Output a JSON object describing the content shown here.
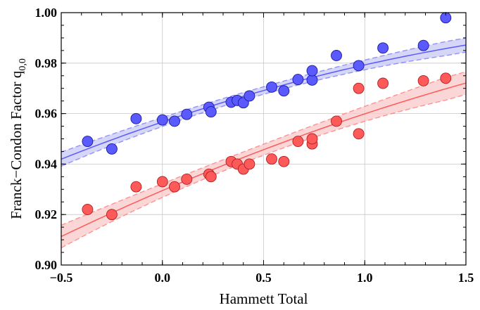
{
  "chart_data": {
    "type": "scatter",
    "title": "",
    "xlabel": "Hammett Total",
    "ylabel": "Franck−Condon Factor q",
    "ylabel_subscript": "0,0",
    "xlim": [
      -0.5,
      1.5
    ],
    "ylim": [
      0.9,
      1.0
    ],
    "x_ticks": [
      -0.5,
      0.0,
      0.5,
      1.0,
      1.5
    ],
    "x_tick_labels": [
      "−0.5",
      "0.0",
      "0.5",
      "1.0",
      "1.5"
    ],
    "y_ticks": [
      0.9,
      0.92,
      0.94,
      0.96,
      0.98,
      1.0
    ],
    "y_tick_labels": [
      "0.90",
      "0.92",
      "0.94",
      "0.96",
      "0.98",
      "1.00"
    ],
    "grid": true,
    "series": [
      {
        "color": "#5a5aff",
        "edge_color": "#1a1aa0",
        "band_color": "#c8c8f4",
        "points": [
          [
            -0.37,
            0.949
          ],
          [
            -0.25,
            0.946
          ],
          [
            -0.13,
            0.958
          ],
          [
            0.0,
            0.9575
          ],
          [
            0.06,
            0.957
          ],
          [
            0.12,
            0.9597
          ],
          [
            0.23,
            0.9625
          ],
          [
            0.24,
            0.9607
          ],
          [
            0.34,
            0.9645
          ],
          [
            0.37,
            0.9652
          ],
          [
            0.4,
            0.9643
          ],
          [
            0.43,
            0.967
          ],
          [
            0.54,
            0.9705
          ],
          [
            0.6,
            0.969
          ],
          [
            0.67,
            0.9735
          ],
          [
            0.74,
            0.9733
          ],
          [
            0.74,
            0.977
          ],
          [
            0.86,
            0.983
          ],
          [
            0.97,
            0.979
          ],
          [
            1.09,
            0.986
          ],
          [
            1.29,
            0.987
          ],
          [
            1.4,
            0.998
          ]
        ],
        "fit": {
          "type": "quadratic",
          "a": 0.9567,
          "b": 0.0272,
          "c": -0.0046
        },
        "band_halfwidth": [
          0.0028,
          0.0015,
          0.0028
        ]
      },
      {
        "color": "#ff5a5a",
        "edge_color": "#b02020",
        "band_color": "#f9c8c8",
        "points": [
          [
            -0.37,
            0.922
          ],
          [
            -0.25,
            0.92
          ],
          [
            -0.13,
            0.931
          ],
          [
            0.0,
            0.933
          ],
          [
            0.06,
            0.931
          ],
          [
            0.12,
            0.934
          ],
          [
            0.23,
            0.936
          ],
          [
            0.24,
            0.935
          ],
          [
            0.34,
            0.941
          ],
          [
            0.37,
            0.94
          ],
          [
            0.4,
            0.938
          ],
          [
            0.43,
            0.94
          ],
          [
            0.54,
            0.942
          ],
          [
            0.6,
            0.941
          ],
          [
            0.67,
            0.949
          ],
          [
            0.74,
            0.948
          ],
          [
            0.74,
            0.95
          ],
          [
            0.86,
            0.957
          ],
          [
            0.97,
            0.952
          ],
          [
            0.97,
            0.97
          ],
          [
            1.09,
            0.972
          ],
          [
            1.29,
            0.973
          ],
          [
            1.4,
            0.974
          ]
        ],
        "fit": {
          "type": "quadratic",
          "a": 0.9295,
          "b": 0.0344,
          "c": -0.004
        },
        "band_halfwidth": [
          0.0045,
          0.0022,
          0.0045
        ]
      }
    ]
  }
}
